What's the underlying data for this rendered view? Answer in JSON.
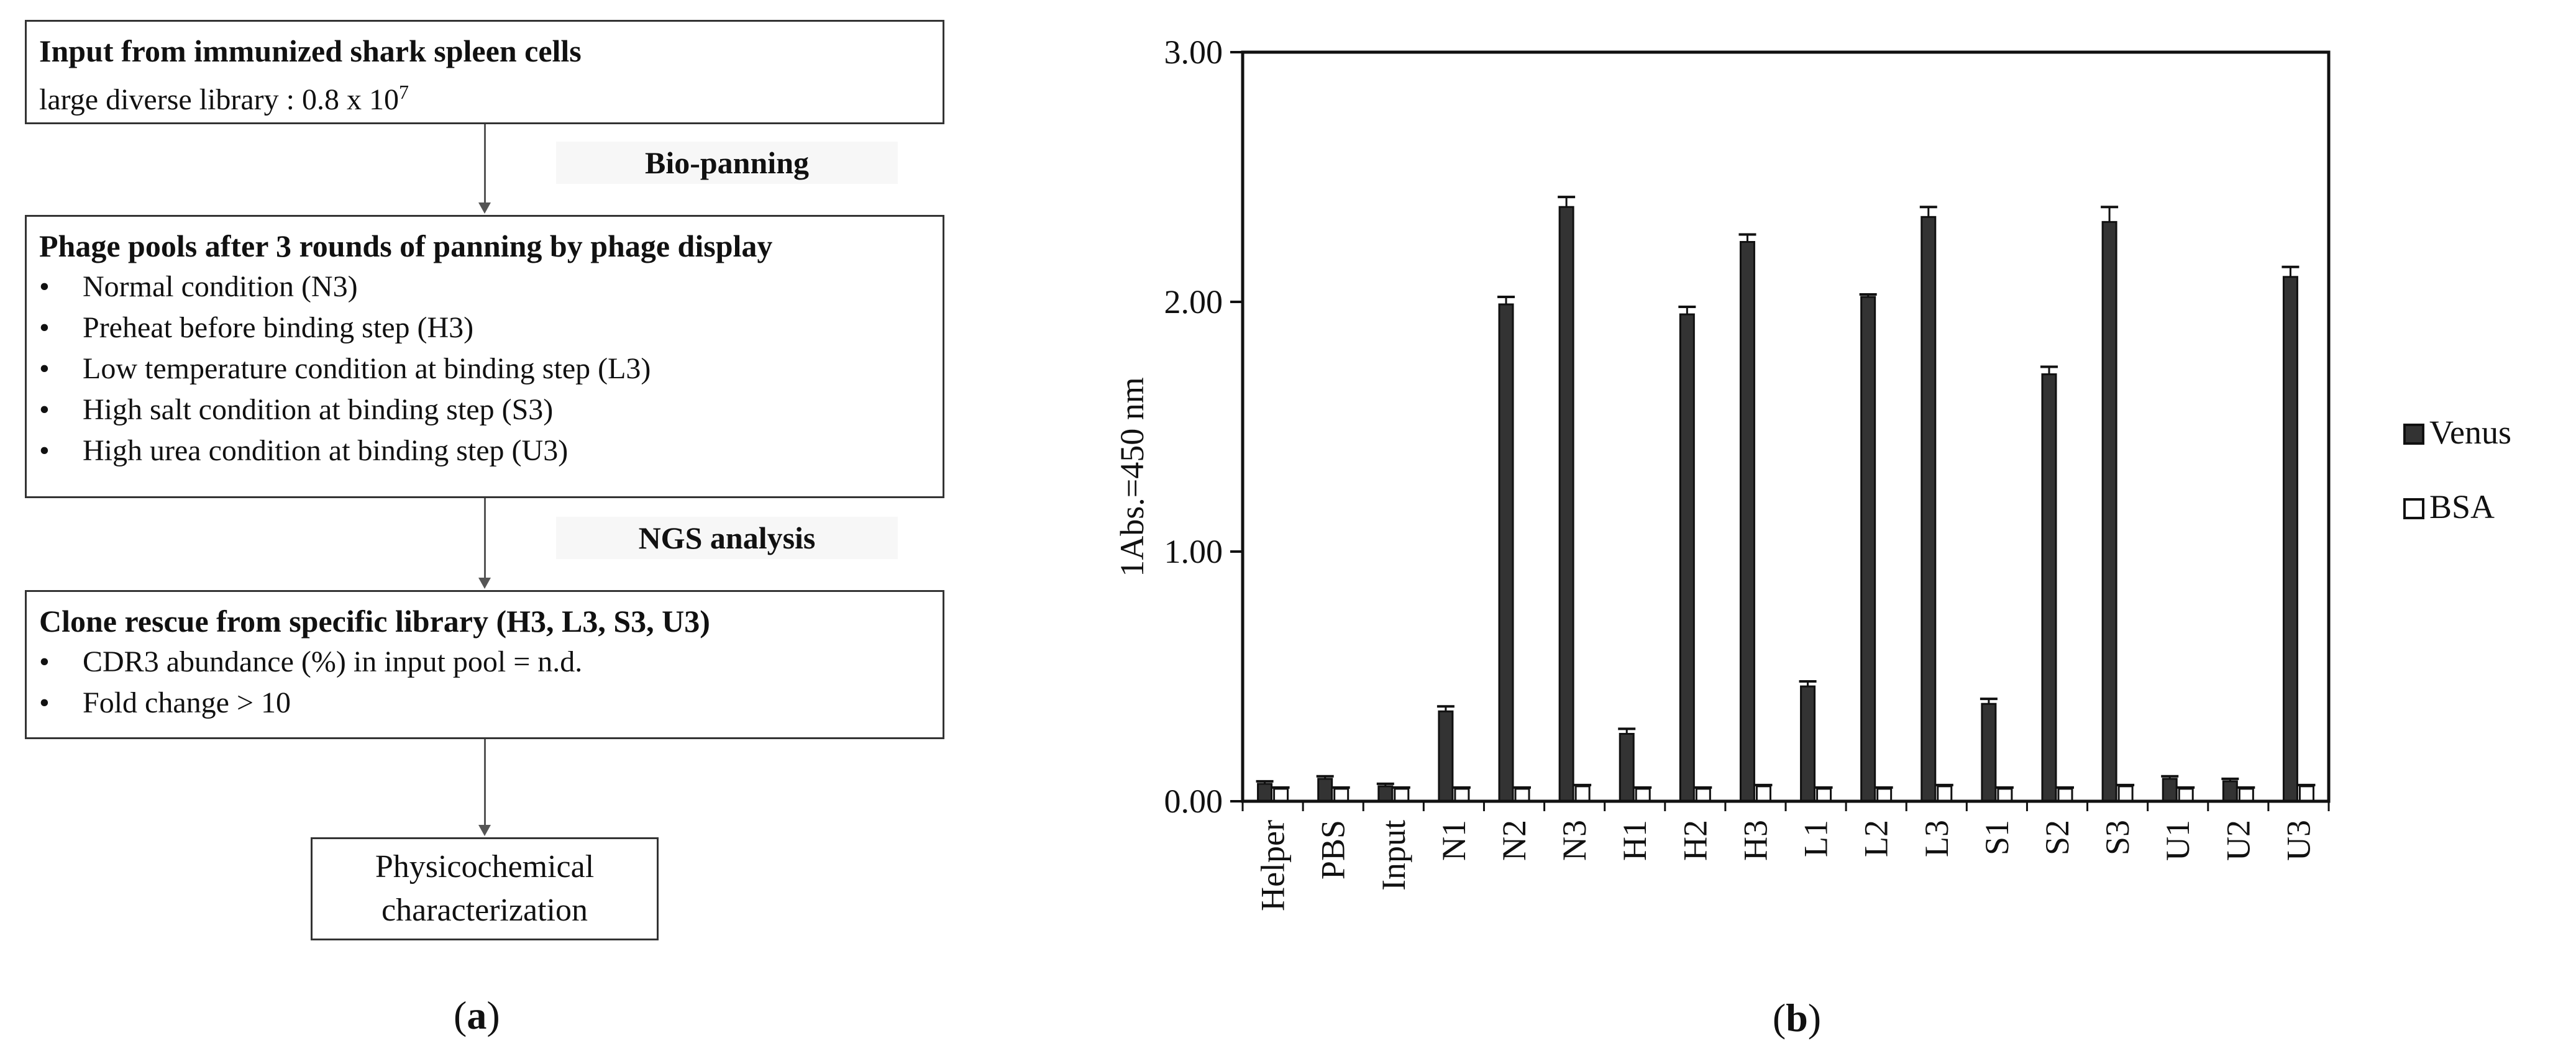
{
  "flowchart": {
    "box1": {
      "title": "Input from immunized shark spleen cells",
      "line_prefix": "large diverse library : 0.8 x 10",
      "line_exponent": "7"
    },
    "step1_label": "Bio-panning",
    "box2": {
      "title": "Phage pools after 3 rounds of panning by phage display",
      "bullets": [
        "Normal condition (N3)",
        "Preheat before binding step (H3)",
        "Low temperature condition at binding step (L3)",
        "High salt condition at binding step (S3)",
        "High urea condition at binding step (U3)"
      ]
    },
    "step2_label": "NGS analysis",
    "box3": {
      "title": "Clone rescue from specific library (H3, L3, S3, U3)",
      "bullets": [
        "CDR3 abundance (%) in input pool = n.d.",
        "Fold change > 10"
      ]
    },
    "box4": {
      "line1": "Physicochemical",
      "line2": "characterization"
    },
    "bullet_symbol": "•",
    "panel_label": {
      "open": "(",
      "letter": "a",
      "close": ")"
    }
  },
  "chart_panel_label": {
    "open": "(",
    "letter": "b",
    "close": ")"
  },
  "chart_data": {
    "type": "bar",
    "title": "",
    "xlabel": "",
    "ylabel": "1Abs.=450 nm",
    "ylim": [
      0,
      3
    ],
    "yticks": [
      "0.00",
      "1.00",
      "2.00",
      "3.00"
    ],
    "categories": [
      "Helper",
      "PBS",
      "Input",
      "N1",
      "N2",
      "N3",
      "H1",
      "H2",
      "H3",
      "L1",
      "L2",
      "L3",
      "S1",
      "S2",
      "S3",
      "U1",
      "U2",
      "U3"
    ],
    "series": [
      {
        "name": "Venus",
        "color": "#333333",
        "values": [
          0.07,
          0.09,
          0.06,
          0.36,
          1.99,
          2.38,
          0.27,
          1.95,
          2.24,
          0.46,
          2.02,
          2.34,
          0.39,
          1.71,
          2.32,
          0.09,
          0.08,
          2.1
        ],
        "errors": [
          0.01,
          0.01,
          0.01,
          0.02,
          0.03,
          0.04,
          0.02,
          0.03,
          0.03,
          0.02,
          0.01,
          0.04,
          0.02,
          0.03,
          0.06,
          0.01,
          0.01,
          0.04
        ]
      },
      {
        "name": "BSA",
        "color": "#ffffff",
        "values": [
          0.05,
          0.05,
          0.05,
          0.05,
          0.05,
          0.06,
          0.05,
          0.05,
          0.06,
          0.05,
          0.05,
          0.06,
          0.05,
          0.05,
          0.06,
          0.05,
          0.05,
          0.06
        ],
        "errors": [
          0.005,
          0.005,
          0.005,
          0.005,
          0.005,
          0.005,
          0.005,
          0.005,
          0.005,
          0.005,
          0.005,
          0.005,
          0.005,
          0.005,
          0.005,
          0.005,
          0.005,
          0.005
        ]
      }
    ],
    "legend_position": "right",
    "grid": false
  }
}
